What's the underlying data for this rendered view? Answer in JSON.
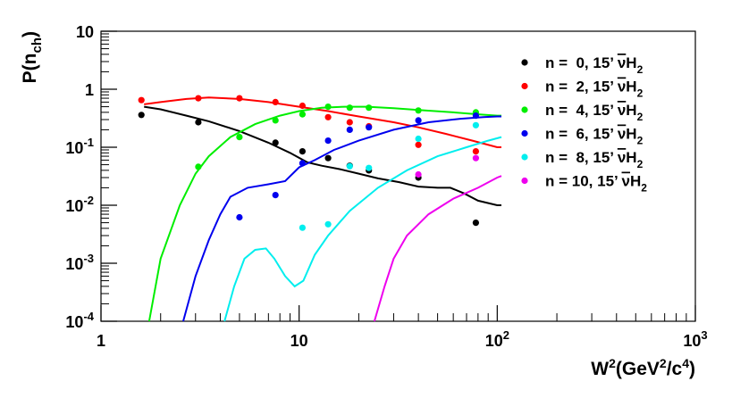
{
  "chart_data": {
    "type": "scatter",
    "title": "",
    "xlabel": "W²(GeV²/c⁴)",
    "ylabel": "P(n_ch)",
    "xscale": "log",
    "yscale": "log",
    "xlim": [
      1,
      1000
    ],
    "ylim": [
      0.0001,
      10
    ],
    "x_ticks": [
      {
        "value": 1,
        "label": "1"
      },
      {
        "value": 10,
        "label": "10"
      },
      {
        "value": 100,
        "label": "10²"
      },
      {
        "value": 1000,
        "label": "10³"
      }
    ],
    "y_ticks": [
      {
        "value": 0.0001,
        "label": "10⁻⁴"
      },
      {
        "value": 0.001,
        "label": "10⁻³"
      },
      {
        "value": 0.01,
        "label": "10⁻²"
      },
      {
        "value": 0.1,
        "label": "10⁻¹"
      },
      {
        "value": 1,
        "label": "1"
      },
      {
        "value": 10,
        "label": "10"
      }
    ],
    "legend_position": "right",
    "series": [
      {
        "name": "n =  0, 15’ νH₂",
        "color": "#000000",
        "points": [
          [
            1.6,
            0.36
          ],
          [
            3.1,
            0.27
          ],
          [
            7.6,
            0.12
          ],
          [
            10.4,
            0.085
          ],
          [
            14,
            0.065
          ],
          [
            18,
            0.048
          ],
          [
            22.5,
            0.04
          ],
          [
            40,
            0.03
          ],
          [
            78,
            0.005
          ]
        ],
        "curve": [
          [
            1.65,
            0.5
          ],
          [
            2.0,
            0.45
          ],
          [
            2.7,
            0.35
          ],
          [
            3.5,
            0.28
          ],
          [
            5.0,
            0.19
          ],
          [
            7.0,
            0.12
          ],
          [
            9.0,
            0.08
          ],
          [
            11.0,
            0.055
          ],
          [
            13.0,
            0.048
          ],
          [
            16.0,
            0.042
          ],
          [
            20.0,
            0.035
          ],
          [
            25.0,
            0.029
          ],
          [
            32.0,
            0.025
          ],
          [
            40.0,
            0.021
          ],
          [
            50.0,
            0.02
          ],
          [
            58.0,
            0.02
          ],
          [
            68.0,
            0.016
          ],
          [
            80.0,
            0.012
          ],
          [
            100.0,
            0.01
          ],
          [
            105.0,
            0.01
          ]
        ]
      },
      {
        "name": "n =  2, 15’ νH₂",
        "color": "#ff0000",
        "points": [
          [
            1.6,
            0.65
          ],
          [
            3.1,
            0.7
          ],
          [
            5.0,
            0.7
          ],
          [
            7.6,
            0.6
          ],
          [
            10.4,
            0.52
          ],
          [
            14,
            0.33
          ],
          [
            18,
            0.27
          ],
          [
            22.5,
            0.23
          ],
          [
            40,
            0.11
          ],
          [
            78,
            0.085
          ]
        ],
        "curve": [
          [
            1.65,
            0.55
          ],
          [
            2.0,
            0.6
          ],
          [
            2.7,
            0.68
          ],
          [
            3.5,
            0.72
          ],
          [
            5.0,
            0.68
          ],
          [
            7.0,
            0.6
          ],
          [
            10.0,
            0.5
          ],
          [
            14.0,
            0.42
          ],
          [
            20.0,
            0.34
          ],
          [
            30.0,
            0.27
          ],
          [
            40.0,
            0.22
          ],
          [
            55.0,
            0.17
          ],
          [
            75.0,
            0.13
          ],
          [
            100.0,
            0.1
          ],
          [
            105.0,
            0.1
          ]
        ]
      },
      {
        "name": "n =  4, 15’ νH₂",
        "color": "#00ee00",
        "points": [
          [
            3.1,
            0.046
          ],
          [
            5.0,
            0.15
          ],
          [
            7.6,
            0.29
          ],
          [
            10.4,
            0.37
          ],
          [
            14,
            0.5
          ],
          [
            18,
            0.48
          ],
          [
            22.5,
            0.48
          ],
          [
            40,
            0.43
          ],
          [
            78,
            0.4
          ]
        ],
        "curve": [
          [
            1.75,
            0.0001
          ],
          [
            2.0,
            0.0012
          ],
          [
            2.5,
            0.01
          ],
          [
            3.0,
            0.035
          ],
          [
            3.5,
            0.07
          ],
          [
            4.5,
            0.15
          ],
          [
            6.0,
            0.25
          ],
          [
            8.0,
            0.35
          ],
          [
            10.0,
            0.42
          ],
          [
            13.0,
            0.48
          ],
          [
            17.0,
            0.5
          ],
          [
            22.0,
            0.5
          ],
          [
            30.0,
            0.47
          ],
          [
            40.0,
            0.44
          ],
          [
            60.0,
            0.4
          ],
          [
            80.0,
            0.37
          ],
          [
            100.0,
            0.35
          ],
          [
            105.0,
            0.35
          ]
        ]
      },
      {
        "name": "n =  6, 15’ νH₂",
        "color": "#0000ee",
        "points": [
          [
            5.0,
            0.0062
          ],
          [
            7.6,
            0.015
          ],
          [
            10.4,
            0.053
          ],
          [
            14,
            0.13
          ],
          [
            18,
            0.2
          ],
          [
            22.5,
            0.22
          ],
          [
            40,
            0.29
          ],
          [
            78,
            0.35
          ]
        ],
        "curve": [
          [
            2.6,
            0.0001
          ],
          [
            3.0,
            0.0006
          ],
          [
            3.5,
            0.0025
          ],
          [
            4.0,
            0.007
          ],
          [
            4.5,
            0.014
          ],
          [
            5.5,
            0.02
          ],
          [
            7.0,
            0.023
          ],
          [
            8.5,
            0.026
          ],
          [
            10.0,
            0.045
          ],
          [
            12.0,
            0.06
          ],
          [
            15.0,
            0.09
          ],
          [
            20.0,
            0.13
          ],
          [
            30.0,
            0.2
          ],
          [
            45.0,
            0.27
          ],
          [
            65.0,
            0.31
          ],
          [
            85.0,
            0.33
          ],
          [
            100.0,
            0.34
          ],
          [
            105.0,
            0.34
          ]
        ]
      },
      {
        "name": "n =  8, 15’ νH₂",
        "color": "#00eeee",
        "points": [
          [
            10.4,
            0.0041
          ],
          [
            14,
            0.0047
          ],
          [
            18,
            0.047
          ],
          [
            22.5,
            0.044
          ],
          [
            40,
            0.14
          ],
          [
            78,
            0.24
          ]
        ],
        "curve": [
          [
            4.2,
            0.0001
          ],
          [
            4.7,
            0.0004
          ],
          [
            5.3,
            0.0012
          ],
          [
            6.0,
            0.0017
          ],
          [
            6.8,
            0.0018
          ],
          [
            7.5,
            0.0012
          ],
          [
            8.5,
            0.0006
          ],
          [
            9.5,
            0.0004
          ],
          [
            10.5,
            0.0005
          ],
          [
            12.0,
            0.0014
          ],
          [
            14.0,
            0.003
          ],
          [
            18.0,
            0.008
          ],
          [
            25.0,
            0.02
          ],
          [
            35.0,
            0.04
          ],
          [
            50.0,
            0.07
          ],
          [
            70.0,
            0.1
          ],
          [
            90.0,
            0.13
          ],
          [
            105.0,
            0.15
          ]
        ]
      },
      {
        "name": "n = 10, 15’ νH₂",
        "color": "#ee00ee",
        "points": [
          [
            40,
            0.034
          ],
          [
            78,
            0.065
          ]
        ],
        "curve": [
          [
            24.0,
            0.0001
          ],
          [
            27.0,
            0.0004
          ],
          [
            30.0,
            0.0012
          ],
          [
            35.0,
            0.003
          ],
          [
            45.0,
            0.007
          ],
          [
            60.0,
            0.013
          ],
          [
            80.0,
            0.02
          ],
          [
            100.0,
            0.03
          ],
          [
            105.0,
            0.032
          ]
        ]
      }
    ]
  }
}
